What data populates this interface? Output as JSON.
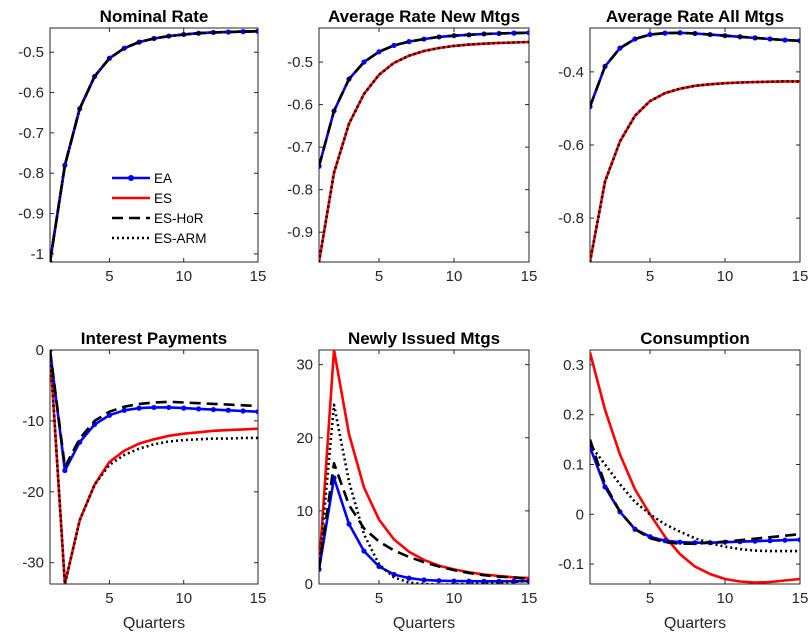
{
  "figure": {
    "legend": {
      "placement": "inside first panel, lower-right",
      "entries": [
        {
          "label": "EA",
          "color": "#0000ff",
          "style": "solid-markers"
        },
        {
          "label": "ES",
          "color": "#ff0000",
          "style": "solid"
        },
        {
          "label": "ES-HoR",
          "color": "#000000",
          "style": "dashed"
        },
        {
          "label": "ES-ARM",
          "color": "#000000",
          "style": "dotted"
        }
      ]
    }
  },
  "chart_data": [
    {
      "type": "line",
      "title": "Nominal Rate",
      "xlabel": "",
      "xlim": [
        1,
        15
      ],
      "ylim": [
        -1.02,
        -0.44
      ],
      "xticks": [
        5,
        10,
        15
      ],
      "yticks": [
        -1,
        -0.9,
        -0.8,
        -0.7,
        -0.6,
        -0.5
      ],
      "yticklabels": [
        "-1",
        "-0.9",
        "-0.8",
        "-0.7",
        "-0.6",
        "-0.5"
      ],
      "grid": false,
      "x": [
        1,
        2,
        3,
        4,
        5,
        6,
        7,
        8,
        9,
        10,
        11,
        12,
        13,
        14,
        15
      ],
      "series": [
        {
          "name": "EA",
          "color": "#0000ff",
          "style": "solid-markers",
          "values": [
            -1.02,
            -0.78,
            -0.64,
            -0.56,
            -0.515,
            -0.49,
            -0.475,
            -0.466,
            -0.46,
            -0.456,
            -0.453,
            -0.451,
            -0.45,
            -0.449,
            -0.448
          ]
        },
        {
          "name": "ES",
          "color": "#ff0000",
          "style": "solid",
          "values": [
            -1.02,
            -0.78,
            -0.64,
            -0.56,
            -0.515,
            -0.49,
            -0.475,
            -0.466,
            -0.46,
            -0.456,
            -0.453,
            -0.451,
            -0.45,
            -0.449,
            -0.448
          ]
        },
        {
          "name": "ES-HoR",
          "color": "#000000",
          "style": "dashed",
          "values": [
            -1.02,
            -0.78,
            -0.64,
            -0.56,
            -0.515,
            -0.49,
            -0.475,
            -0.466,
            -0.46,
            -0.456,
            -0.453,
            -0.451,
            -0.45,
            -0.449,
            -0.448
          ]
        },
        {
          "name": "ES-ARM",
          "color": "#000000",
          "style": "dotted",
          "values": [
            -1.02,
            -0.78,
            -0.64,
            -0.56,
            -0.515,
            -0.49,
            -0.475,
            -0.466,
            -0.46,
            -0.456,
            -0.453,
            -0.451,
            -0.45,
            -0.449,
            -0.448
          ]
        }
      ]
    },
    {
      "type": "line",
      "title": "Average Rate New Mtgs",
      "xlabel": "",
      "xlim": [
        1,
        15
      ],
      "ylim": [
        -0.97,
        -0.42
      ],
      "xticks": [
        5,
        10,
        15
      ],
      "yticks": [
        -0.9,
        -0.8,
        -0.7,
        -0.6,
        -0.5
      ],
      "yticklabels": [
        "-0.9",
        "-0.8",
        "-0.7",
        "-0.6",
        "-0.5"
      ],
      "grid": false,
      "x": [
        1,
        2,
        3,
        4,
        5,
        6,
        7,
        8,
        9,
        10,
        11,
        12,
        13,
        14,
        15
      ],
      "series": [
        {
          "name": "EA",
          "color": "#0000ff",
          "style": "solid-markers",
          "values": [
            -0.745,
            -0.615,
            -0.54,
            -0.5,
            -0.476,
            -0.461,
            -0.452,
            -0.446,
            -0.441,
            -0.438,
            -0.436,
            -0.434,
            -0.433,
            -0.432,
            -0.431
          ]
        },
        {
          "name": "ES",
          "color": "#ff0000",
          "style": "solid",
          "values": [
            -0.97,
            -0.76,
            -0.645,
            -0.575,
            -0.53,
            -0.502,
            -0.485,
            -0.474,
            -0.467,
            -0.462,
            -0.459,
            -0.457,
            -0.455,
            -0.454,
            -0.453
          ]
        },
        {
          "name": "ES-HoR",
          "color": "#000000",
          "style": "dashed",
          "values": [
            -0.745,
            -0.615,
            -0.54,
            -0.5,
            -0.476,
            -0.461,
            -0.452,
            -0.446,
            -0.441,
            -0.438,
            -0.436,
            -0.434,
            -0.433,
            -0.432,
            -0.431
          ]
        },
        {
          "name": "ES-ARM",
          "color": "#000000",
          "style": "dotted",
          "values": [
            -0.97,
            -0.76,
            -0.645,
            -0.575,
            -0.53,
            -0.502,
            -0.485,
            -0.474,
            -0.467,
            -0.462,
            -0.459,
            -0.457,
            -0.455,
            -0.454,
            -0.453
          ]
        }
      ]
    },
    {
      "type": "line",
      "title": "Average Rate All Mtgs",
      "xlabel": "",
      "xlim": [
        1,
        15
      ],
      "ylim": [
        -0.92,
        -0.28
      ],
      "xticks": [
        5,
        10,
        15
      ],
      "yticks": [
        -0.8,
        -0.6,
        -0.4
      ],
      "yticklabels": [
        "-0.8",
        "-0.6",
        "-0.4"
      ],
      "grid": false,
      "x": [
        1,
        2,
        3,
        4,
        5,
        6,
        7,
        8,
        9,
        10,
        11,
        12,
        13,
        14,
        15
      ],
      "series": [
        {
          "name": "EA",
          "color": "#0000ff",
          "style": "solid-markers",
          "values": [
            -0.495,
            -0.385,
            -0.335,
            -0.31,
            -0.298,
            -0.294,
            -0.293,
            -0.295,
            -0.298,
            -0.301,
            -0.304,
            -0.307,
            -0.31,
            -0.313,
            -0.315
          ]
        },
        {
          "name": "ES",
          "color": "#ff0000",
          "style": "solid",
          "values": [
            -0.92,
            -0.7,
            -0.59,
            -0.52,
            -0.48,
            -0.458,
            -0.446,
            -0.438,
            -0.434,
            -0.431,
            -0.429,
            -0.428,
            -0.427,
            -0.426,
            -0.426
          ]
        },
        {
          "name": "ES-HoR",
          "color": "#000000",
          "style": "dashed",
          "values": [
            -0.495,
            -0.385,
            -0.335,
            -0.31,
            -0.298,
            -0.294,
            -0.293,
            -0.295,
            -0.298,
            -0.301,
            -0.304,
            -0.307,
            -0.31,
            -0.313,
            -0.315
          ]
        },
        {
          "name": "ES-ARM",
          "color": "#000000",
          "style": "dotted",
          "values": [
            -0.92,
            -0.7,
            -0.59,
            -0.52,
            -0.48,
            -0.458,
            -0.446,
            -0.438,
            -0.434,
            -0.431,
            -0.429,
            -0.428,
            -0.427,
            -0.426,
            -0.426
          ]
        }
      ]
    },
    {
      "type": "line",
      "title": "Interest Payments",
      "xlabel": "Quarters",
      "xlim": [
        1,
        15
      ],
      "ylim": [
        -33,
        0
      ],
      "xticks": [
        5,
        10,
        15
      ],
      "yticks": [
        -30,
        -20,
        -10,
        0
      ],
      "yticklabels": [
        "-30",
        "-20",
        "-10",
        "0"
      ],
      "grid": false,
      "x": [
        1,
        2,
        3,
        4,
        5,
        6,
        7,
        8,
        9,
        10,
        11,
        12,
        13,
        14,
        15
      ],
      "series": [
        {
          "name": "EA",
          "color": "#0000ff",
          "style": "solid-markers",
          "values": [
            0,
            -17,
            -13,
            -10.5,
            -9.2,
            -8.5,
            -8.2,
            -8.1,
            -8.1,
            -8.2,
            -8.3,
            -8.4,
            -8.5,
            -8.6,
            -8.7
          ]
        },
        {
          "name": "ES",
          "color": "#ff0000",
          "style": "solid",
          "values": [
            0,
            -33,
            -24,
            -19,
            -15.8,
            -14.2,
            -13.2,
            -12.6,
            -12.1,
            -11.8,
            -11.6,
            -11.4,
            -11.3,
            -11.2,
            -11.1
          ]
        },
        {
          "name": "ES-HoR",
          "color": "#000000",
          "style": "dashed",
          "values": [
            0,
            -16.5,
            -12.5,
            -10,
            -8.7,
            -8,
            -7.6,
            -7.4,
            -7.3,
            -7.4,
            -7.5,
            -7.6,
            -7.7,
            -7.8,
            -7.9
          ]
        },
        {
          "name": "ES-ARM",
          "color": "#000000",
          "style": "dotted",
          "values": [
            0,
            -33,
            -24,
            -19,
            -16.2,
            -14.8,
            -13.9,
            -13.3,
            -12.9,
            -12.7,
            -12.6,
            -12.5,
            -12.5,
            -12.4,
            -12.4
          ]
        }
      ]
    },
    {
      "type": "line",
      "title": "Newly Issued Mtgs",
      "xlabel": "Quarters",
      "xlim": [
        1,
        15
      ],
      "ylim": [
        0,
        32
      ],
      "xticks": [
        5,
        10,
        15
      ],
      "yticks": [
        0,
        10,
        20,
        30
      ],
      "yticklabels": [
        "0",
        "10",
        "20",
        "30"
      ],
      "grid": false,
      "x": [
        1,
        2,
        3,
        4,
        5,
        6,
        7,
        8,
        9,
        10,
        11,
        12,
        13,
        14,
        15
      ],
      "series": [
        {
          "name": "EA",
          "color": "#0000ff",
          "style": "solid-markers",
          "values": [
            2,
            14.5,
            8.2,
            4.5,
            2.4,
            1.3,
            0.8,
            0.55,
            0.45,
            0.4,
            0.38,
            0.37,
            0.37,
            0.38,
            0.4
          ]
        },
        {
          "name": "ES",
          "color": "#ff0000",
          "style": "solid",
          "values": [
            2,
            32,
            20.5,
            13.2,
            8.8,
            6.1,
            4.4,
            3.3,
            2.5,
            2,
            1.6,
            1.3,
            1.1,
            0.9,
            0.8
          ]
        },
        {
          "name": "ES-HoR",
          "color": "#000000",
          "style": "dashed",
          "values": [
            2,
            16.5,
            10.8,
            7.6,
            5.8,
            4.6,
            3.7,
            3,
            2.4,
            1.9,
            1.5,
            1.2,
            1,
            0.9,
            0.7
          ]
        },
        {
          "name": "ES-ARM",
          "color": "#000000",
          "style": "dotted",
          "values": [
            2,
            24.5,
            14,
            6.8,
            2.7,
            0.9,
            0.2,
            0,
            -0.1,
            -0.05,
            0,
            0.1,
            0.2,
            0.3,
            0.4
          ]
        }
      ]
    },
    {
      "type": "line",
      "title": "Consumption",
      "xlabel": "Quarters",
      "xlim": [
        1,
        15
      ],
      "ylim": [
        -0.14,
        0.33
      ],
      "xticks": [
        5,
        10,
        15
      ],
      "yticks": [
        -0.1,
        0,
        0.1,
        0.2,
        0.3
      ],
      "yticklabels": [
        "-0.1",
        "0",
        "0.1",
        "0.2",
        "0.3"
      ],
      "grid": false,
      "x": [
        1,
        2,
        3,
        4,
        5,
        6,
        7,
        8,
        9,
        10,
        11,
        12,
        13,
        14,
        15
      ],
      "series": [
        {
          "name": "EA",
          "color": "#0000ff",
          "style": "solid-markers",
          "values": [
            0.135,
            0.055,
            0.005,
            -0.03,
            -0.045,
            -0.053,
            -0.056,
            -0.057,
            -0.057,
            -0.056,
            -0.055,
            -0.054,
            -0.053,
            -0.052,
            -0.051
          ]
        },
        {
          "name": "ES",
          "color": "#ff0000",
          "style": "solid",
          "values": [
            0.325,
            0.21,
            0.12,
            0.05,
            0.0,
            -0.045,
            -0.08,
            -0.105,
            -0.12,
            -0.13,
            -0.135,
            -0.137,
            -0.136,
            -0.133,
            -0.13
          ]
        },
        {
          "name": "ES-HoR",
          "color": "#000000",
          "style": "dashed",
          "values": [
            0.15,
            0.06,
            0.005,
            -0.03,
            -0.048,
            -0.056,
            -0.059,
            -0.059,
            -0.057,
            -0.055,
            -0.052,
            -0.049,
            -0.046,
            -0.043,
            -0.04
          ]
        },
        {
          "name": "ES-ARM",
          "color": "#000000",
          "style": "dotted",
          "values": [
            0.14,
            0.1,
            0.06,
            0.025,
            0.0,
            -0.02,
            -0.035,
            -0.048,
            -0.058,
            -0.065,
            -0.07,
            -0.073,
            -0.074,
            -0.074,
            -0.074
          ]
        }
      ]
    }
  ]
}
